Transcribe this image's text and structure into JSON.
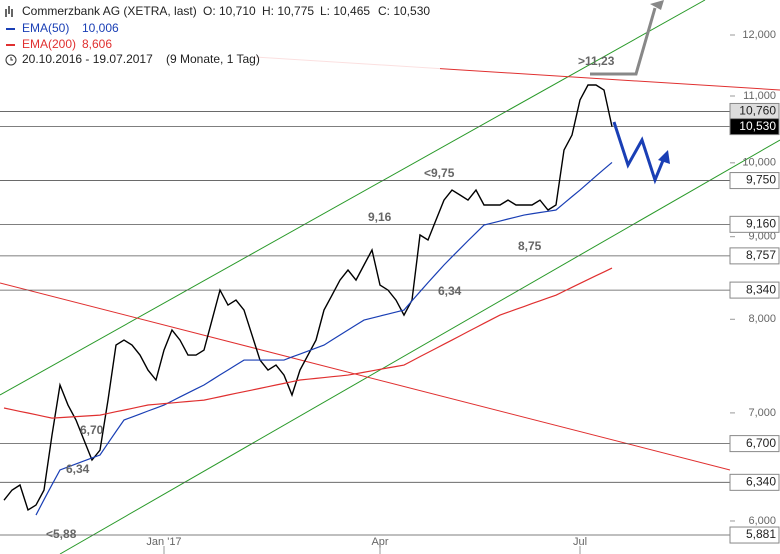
{
  "chart_data": {
    "type": "line",
    "title": "Commerzbank AG (XETRA, last)",
    "ohlc": [
      "O: 10,710",
      "H: 10,775",
      "L: 10,465",
      "C: 10,530"
    ],
    "date_range": "20.10.2016 - 19.07.2017",
    "period": "(9 Monate, 1 Tag)",
    "log_scale": true,
    "ylim": [
      5724,
      12614
    ],
    "yticks": [
      {
        "value": 12000,
        "label": "12,000"
      },
      {
        "value": 11000,
        "label": "11,000"
      },
      {
        "value": 10000,
        "label": "10,000"
      },
      {
        "value": 9000,
        "label": "9,000"
      },
      {
        "value": 8000,
        "label": "8,000"
      },
      {
        "value": 7000,
        "label": "7,000"
      },
      {
        "value": 6000,
        "label": "6,000"
      }
    ],
    "levels": [
      {
        "value": 10760,
        "label": "10,760"
      },
      {
        "value": 10530,
        "label": "10,530"
      },
      {
        "value": 9750,
        "label": "9,750"
      },
      {
        "value": 9160,
        "label": "9,160"
      },
      {
        "value": 8757,
        "label": "8,757"
      },
      {
        "value": 8340,
        "label": "8,340"
      },
      {
        "value": 6700,
        "label": "6,700"
      },
      {
        "value": 6340,
        "label": "6,340"
      },
      {
        "value": 5881,
        "label": "5,881"
      }
    ],
    "annotations": [
      ">11,23",
      "<9,75",
      "9,16",
      "8,75",
      "6,34",
      "6,70",
      "6,34",
      "<5,88"
    ],
    "categories": [
      null,
      null,
      null,
      null,
      null,
      null,
      null,
      null,
      null,
      null,
      null,
      null,
      null,
      null,
      null,
      null,
      null,
      null,
      null,
      null,
      "Jan '17",
      null,
      null,
      null,
      null,
      null,
      null,
      null,
      null,
      null,
      null,
      null,
      null,
      null,
      null,
      null,
      null,
      null,
      null,
      null,
      null,
      null,
      null,
      null,
      null,
      null,
      null,
      "Apr",
      null,
      null,
      null,
      null,
      null,
      null,
      null,
      null,
      null,
      null,
      null,
      null,
      null,
      null,
      null,
      null,
      null,
      null,
      null,
      null,
      null,
      null,
      null,
      null,
      "Jul",
      null,
      null,
      null,
      null
    ],
    "series": [
      {
        "color": "#000000",
        "values": [
          6181,
          6270,
          6316,
          6095,
          6138,
          6270,
          6782,
          7284,
          7079,
          6929,
          6733,
          6545,
          6638,
          7129,
          7711,
          7766,
          7711,
          7602,
          7441,
          7336,
          7656,
          7878,
          7766,
          7602,
          7602,
          7656,
          7991,
          8340,
          8164,
          8222,
          8106,
          7822,
          7548,
          7441,
          7494,
          7388,
          7181,
          7441,
          7602,
          7766,
          8106,
          8280,
          8460,
          8582,
          8460,
          8644,
          8831,
          8400,
          8340,
          8222,
          8048,
          8222,
          9022,
          8958,
          9217,
          9482,
          9619,
          9551,
          9482,
          9619,
          9416,
          9416,
          9416,
          9482,
          9416,
          9416,
          9416,
          9482,
          9349,
          9416,
          10184,
          10404,
          10938,
          11174,
          11174,
          11094,
          10530
        ]
      },
      {
        "name": "EMA(50)",
        "label": "10,006",
        "color": "#1a3fb5",
        "values": [
          null,
          null,
          null,
          null,
          6051,
          6185,
          6319,
          6453,
          6481,
          6509,
          6536,
          6564,
          6592,
          6704,
          6817,
          6929,
          6959,
          6989,
          7019,
          7049,
          7079,
          7120,
          7161,
          7202,
          7243,
          7284,
          7337,
          7390,
          7442,
          7495,
          7548,
          7548,
          7548,
          7548,
          7548,
          7548,
          7581,
          7613,
          7646,
          7678,
          7711,
          7767,
          7823,
          7879,
          7935,
          7991,
          8014,
          8037,
          8060,
          8083,
          8106,
          8214,
          8321,
          8429,
          8536,
          8644,
          8745,
          8846,
          8948,
          9049,
          9151,
          9177,
          9203,
          9230,
          9256,
          9282,
          9299,
          9316,
          9332,
          9349,
          9439,
          9529,
          9619,
          9716,
          9813,
          9909,
          10006
        ]
      },
      {
        "name": "EMA(200)",
        "label": "8,606",
        "color": "#e03030",
        "values": [
          7049,
          7032,
          7015,
          6999,
          6982,
          6965,
          6948,
          6953,
          6958,
          6963,
          6968,
          6973,
          6978,
          6995,
          7012,
          7028,
          7045,
          7062,
          7079,
          7086,
          7093,
          7100,
          7108,
          7115,
          7122,
          7129,
          7146,
          7163,
          7181,
          7198,
          7215,
          7232,
          7249,
          7267,
          7284,
          7301,
          7319,
          7336,
          7345,
          7353,
          7362,
          7371,
          7379,
          7388,
          7403,
          7418,
          7433,
          7449,
          7464,
          7479,
          7494,
          7539,
          7585,
          7630,
          7675,
          7721,
          7766,
          7813,
          7860,
          7907,
          7954,
          8001,
          8048,
          8081,
          8114,
          8147,
          8181,
          8214,
          8247,
          8280,
          8326,
          8373,
          8420,
          8466,
          8513,
          8559,
          8606
        ]
      }
    ]
  }
}
